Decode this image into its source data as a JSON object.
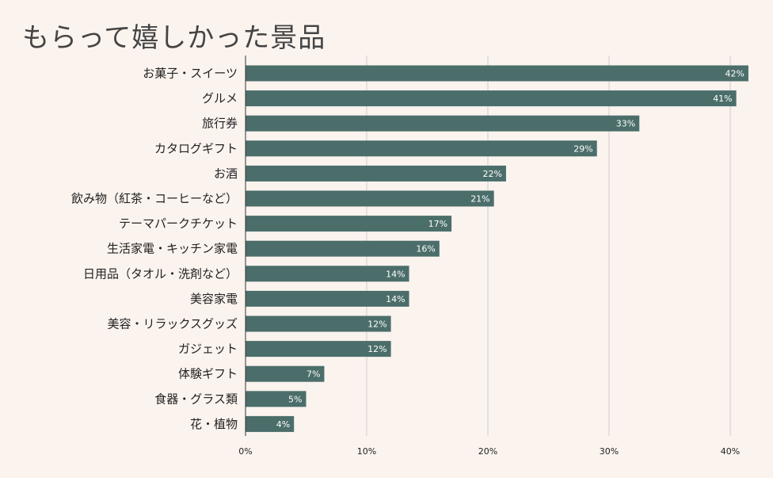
{
  "chart_data": {
    "type": "bar",
    "orientation": "horizontal",
    "title": "もらって嬉しかった景品",
    "categories": [
      "お菓子・スイーツ",
      "グルメ",
      "旅行券",
      "カタログギフト",
      "お酒",
      "飲み物（紅茶・コーヒーなど）",
      "テーマパークチケット",
      "生活家電・キッチン家電",
      "日用品（タオル・洗剤など）",
      "美容家電",
      "美容・リラックスグッズ",
      "ガジェット",
      "体験ギフト",
      "食器・グラス類",
      "花・植物"
    ],
    "values": [
      41.5,
      40.5,
      32.5,
      29,
      21.5,
      20.5,
      17,
      16,
      13.5,
      13.5,
      12,
      12,
      6.5,
      5,
      4
    ],
    "value_labels": [
      "42%",
      "41%",
      "33%",
      "29%",
      "22%",
      "21%",
      "17%",
      "16%",
      "14%",
      "14%",
      "12%",
      "12%",
      "7%",
      "5%",
      "4%"
    ],
    "xlim": [
      0,
      42
    ],
    "x_ticks": [
      0,
      10,
      20,
      30,
      40
    ],
    "x_tick_labels": [
      "0%",
      "10%",
      "20%",
      "30%",
      "40%"
    ],
    "xlabel": "",
    "ylabel": "",
    "grid": "vertical",
    "legend": "none",
    "colors": {
      "bar": "#4b6e6b",
      "background": "#fbf3ee",
      "grid": "#d2cdc9",
      "axis": "#333333",
      "title": "#444444"
    }
  }
}
